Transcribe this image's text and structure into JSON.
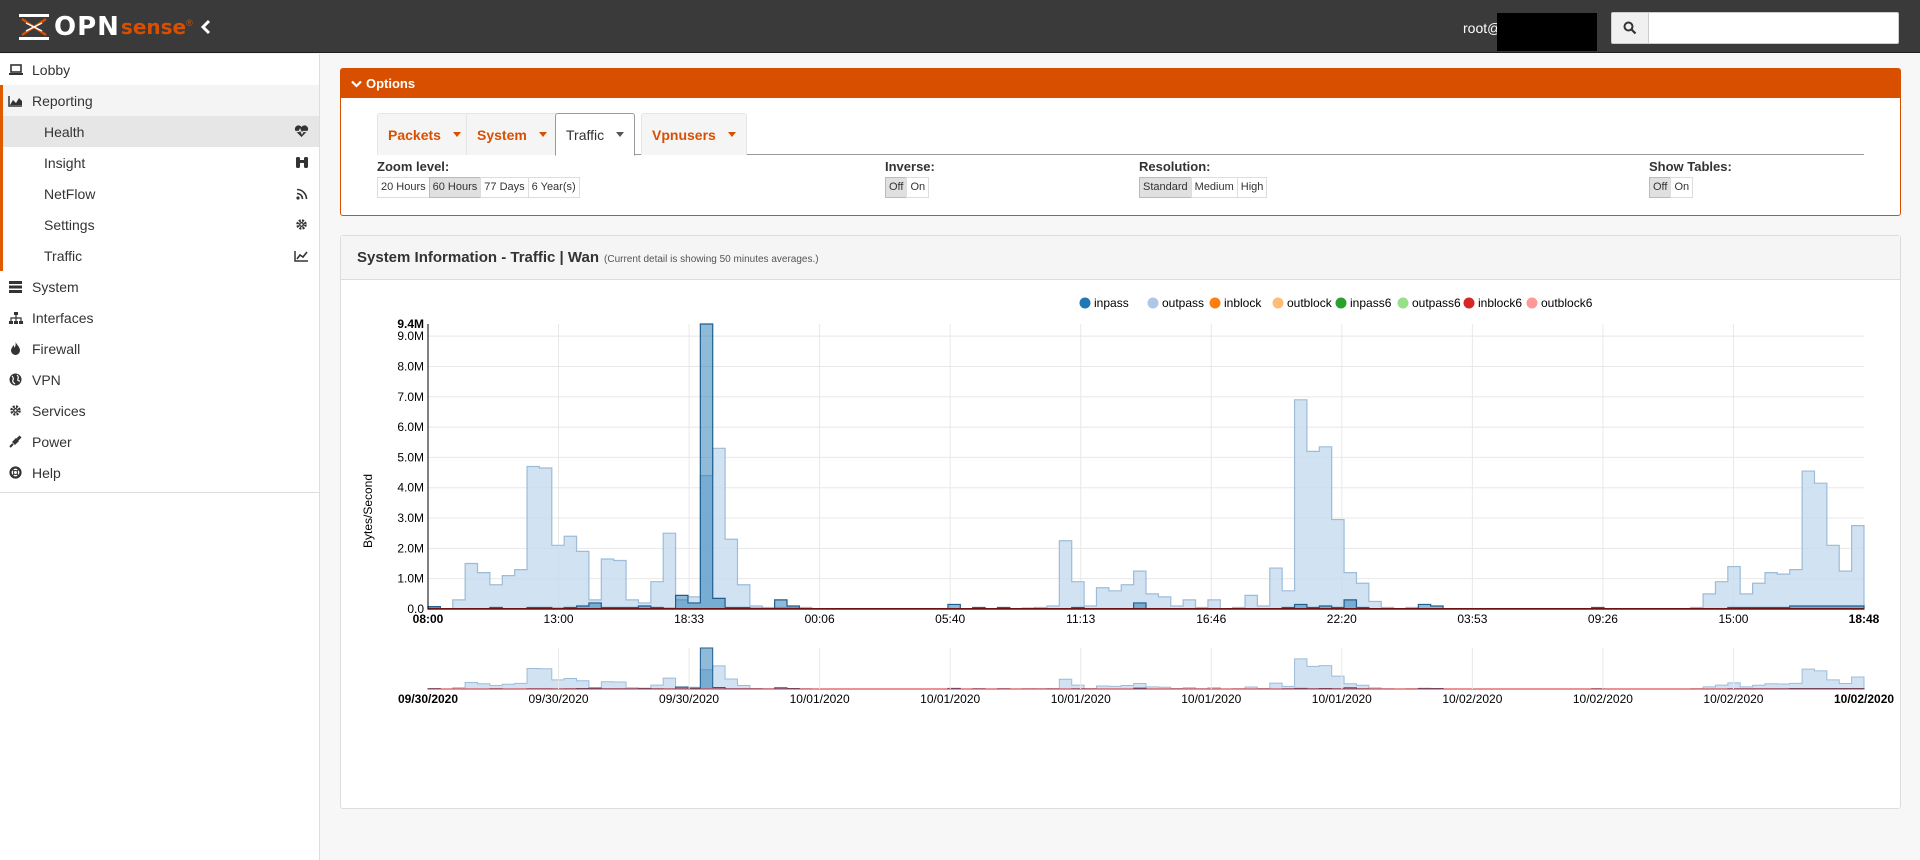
{
  "header": {
    "logo_opn": "OPN",
    "logo_sense": "sense",
    "logo_tm": "®",
    "user": "root@",
    "search_placeholder": ""
  },
  "sidebar": {
    "items": [
      {
        "label": "Lobby",
        "icon": "laptop-icon"
      },
      {
        "label": "Reporting",
        "icon": "area-chart-icon"
      },
      {
        "label": "System",
        "icon": "server-icon"
      },
      {
        "label": "Interfaces",
        "icon": "sitemap-icon"
      },
      {
        "label": "Firewall",
        "icon": "fire-icon"
      },
      {
        "label": "VPN",
        "icon": "globe-icon"
      },
      {
        "label": "Services",
        "icon": "cog-icon"
      },
      {
        "label": "Power",
        "icon": "plug-icon"
      },
      {
        "label": "Help",
        "icon": "lifebuoy-icon"
      }
    ],
    "reporting_sub": [
      {
        "label": "Health",
        "icon": "heartbeat-icon"
      },
      {
        "label": "Insight",
        "icon": "binoculars-icon"
      },
      {
        "label": "NetFlow",
        "icon": "rss-icon"
      },
      {
        "label": "Settings",
        "icon": "cog-icon"
      },
      {
        "label": "Traffic",
        "icon": "line-chart-icon"
      }
    ]
  },
  "options": {
    "title": "Options",
    "tabs": [
      "Packets",
      "System",
      "Traffic",
      "Vpnusers"
    ],
    "active_tab": "Traffic",
    "zoom": {
      "label": "Zoom level:",
      "options": [
        "20 Hours",
        "60 Hours",
        "77 Days",
        "6 Year(s)"
      ],
      "selected": "60 Hours"
    },
    "inverse": {
      "label": "Inverse:",
      "options": [
        "Off",
        "On"
      ],
      "selected": "Off"
    },
    "resolution": {
      "label": "Resolution:",
      "options": [
        "Standard",
        "Medium",
        "High"
      ],
      "selected": "Standard"
    },
    "tables": {
      "label": "Show Tables:",
      "options": [
        "Off",
        "On"
      ],
      "selected": "Off"
    }
  },
  "panel": {
    "title": "System Information - Traffic | Wan",
    "note": "(Current detail is showing 50 minutes averages.)"
  },
  "chart_data": {
    "type": "area",
    "ylabel": "Bytes/Second",
    "y_max_label": "9.4M",
    "y_ticks": [
      "0.0",
      "1.0M",
      "2.0M",
      "3.0M",
      "4.0M",
      "5.0M",
      "6.0M",
      "7.0M",
      "8.0M",
      "9.0M"
    ],
    "ylim": [
      0,
      9.4
    ],
    "y_unit": "M",
    "x_ticks": [
      "08:00",
      "13:00",
      "18:33",
      "00:06",
      "05:40",
      "11:13",
      "16:46",
      "22:20",
      "03:53",
      "09:26",
      "15:00",
      "18:48"
    ],
    "nav_ticks": [
      "09/30/2020",
      "09/30/2020",
      "09/30/2020",
      "10/01/2020",
      "10/01/2020",
      "10/01/2020",
      "10/01/2020",
      "10/01/2020",
      "10/02/2020",
      "10/02/2020",
      "10/02/2020",
      "10/02/2020"
    ],
    "legend": [
      "inpass",
      "outpass",
      "inblock",
      "outblock",
      "inpass6",
      "outpass6",
      "inblock6",
      "outblock6"
    ],
    "legend_colors": [
      "#1f77b4",
      "#aec7e8",
      "#ff7f0e",
      "#ffbb78",
      "#2ca02c",
      "#98df8a",
      "#d62728",
      "#ff9896"
    ],
    "series": [
      {
        "name": "outpass",
        "values": [
          0.05,
          0,
          0.3,
          1.5,
          1.2,
          0.8,
          1.1,
          1.3,
          4.7,
          4.65,
          2.1,
          2.4,
          1.9,
          0.3,
          1.65,
          1.6,
          0.3,
          0.2,
          0.9,
          2.5,
          0.3,
          0.4,
          4.4,
          5.3,
          2.3,
          0.8,
          0.1,
          0.05,
          0.05,
          0.05,
          0.05,
          0,
          0,
          0,
          0,
          0,
          0,
          0,
          0,
          0,
          0,
          0,
          0,
          0,
          0,
          0,
          0,
          0,
          0,
          0.05,
          0.1,
          2.25,
          0.9,
          0.1,
          0.7,
          0.6,
          0.8,
          1.25,
          0.5,
          0.4,
          0.1,
          0.3,
          0.05,
          0.3,
          0,
          0.05,
          0.45,
          0.1,
          1.35,
          0.6,
          6.9,
          5.2,
          5.35,
          2.95,
          1.2,
          0.85,
          0.25,
          0.05,
          0,
          0.05,
          0,
          0,
          0,
          0,
          0,
          0,
          0,
          0,
          0,
          0,
          0,
          0,
          0,
          0,
          0,
          0,
          0,
          0,
          0,
          0,
          0,
          0,
          0.05,
          0.5,
          0.9,
          1.4,
          0.5,
          0.85,
          1.2,
          1.15,
          1.3,
          4.55,
          4.15,
          2.1,
          1.25,
          2.75
        ]
      },
      {
        "name": "inpass",
        "values": [
          0.08,
          0,
          0,
          0,
          0,
          0.05,
          0,
          0,
          0.05,
          0.05,
          0.02,
          0.05,
          0.1,
          0.2,
          0.05,
          0.05,
          0.05,
          0.1,
          0.05,
          0.02,
          0.45,
          0.2,
          9.4,
          0.35,
          0.05,
          0.05,
          0.02,
          0,
          0.3,
          0.1,
          0,
          0,
          0,
          0,
          0,
          0,
          0,
          0,
          0,
          0,
          0,
          0,
          0.15,
          0,
          0.05,
          0,
          0.05,
          0,
          0.02,
          0,
          0,
          0,
          0.05,
          0,
          0,
          0,
          0,
          0.2,
          0,
          0,
          0,
          0,
          0,
          0,
          0,
          0,
          0,
          0,
          0,
          0.05,
          0.15,
          0.05,
          0.1,
          0.05,
          0.3,
          0.05,
          0,
          0,
          0,
          0,
          0.15,
          0.1,
          0,
          0,
          0,
          0,
          0,
          0,
          0,
          0,
          0,
          0,
          0,
          0,
          0.05,
          0,
          0,
          0,
          0,
          0,
          0,
          0,
          0,
          0,
          0,
          0.05,
          0.05,
          0.05,
          0.05,
          0.05,
          0.1,
          0.1,
          0.1,
          0.1,
          0.1,
          0.1
        ]
      }
    ]
  }
}
